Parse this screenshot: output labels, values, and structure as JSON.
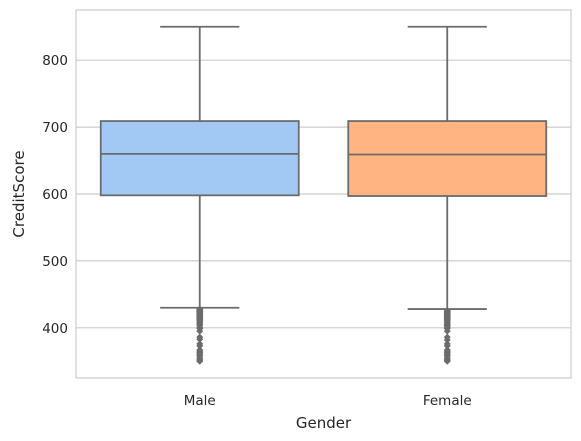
{
  "chart_data": {
    "type": "boxplot",
    "xlabel": "Gender",
    "ylabel": "CreditScore",
    "ylim": [
      325,
      875
    ],
    "yticks": [
      400,
      500,
      600,
      700,
      800
    ],
    "grid": true,
    "categories": [
      "Male",
      "Female"
    ],
    "boxes": [
      {
        "category": "Male",
        "whisker_low": 430,
        "q1": 598,
        "median": 660,
        "q3": 709,
        "whisker_high": 850,
        "outliers": [
          350,
          351,
          353,
          355,
          358,
          359,
          361,
          363,
          365,
          367,
          373,
          376,
          383,
          386,
          395,
          399,
          401,
          404,
          405,
          407,
          408,
          410,
          411,
          412,
          413,
          414,
          415,
          416,
          417,
          418,
          419,
          420,
          421,
          422,
          423,
          424,
          425,
          426,
          427,
          428
        ],
        "color": "#a1c9f4"
      },
      {
        "category": "Female",
        "whisker_low": 428,
        "q1": 597,
        "median": 659,
        "q3": 709,
        "whisker_high": 850,
        "outliers": [
          350,
          351,
          353,
          355,
          358,
          359,
          361,
          363,
          365,
          367,
          373,
          376,
          382,
          386,
          395,
          399,
          401,
          403,
          404,
          405,
          407,
          408,
          410,
          411,
          412,
          413,
          414,
          415,
          416,
          417,
          418,
          419,
          420,
          421,
          422,
          423,
          424,
          425,
          426
        ],
        "color": "#ffb482"
      }
    ]
  }
}
